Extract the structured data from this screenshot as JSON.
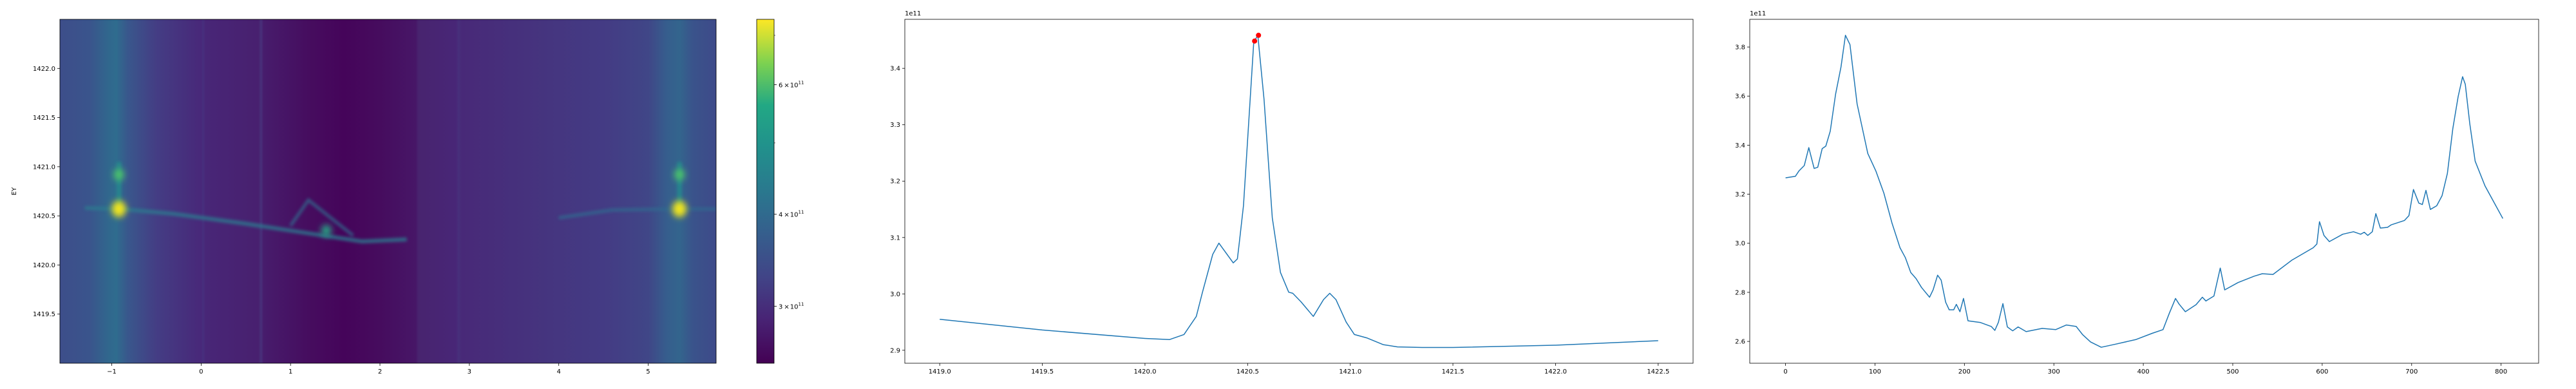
{
  "chart_data": [
    {
      "type": "heatmap",
      "title": "",
      "xlabel": "",
      "ylabel": "EY",
      "xlim": [
        -1.58,
        5.76
      ],
      "ylim": [
        1419.0,
        1422.5
      ],
      "xticks": [
        -1,
        0,
        1,
        2,
        3,
        4,
        5
      ],
      "xtick_labels": [
        "−1",
        "0",
        "1",
        "2",
        "3",
        "4",
        "5"
      ],
      "yticks": [
        1419.5,
        1420.0,
        1420.5,
        1421.0,
        1421.5,
        1422.0
      ],
      "ytick_labels": [
        "1419.5",
        "1420.0",
        "1420.5",
        "1421.0",
        "1421.5",
        "1422.0"
      ],
      "colormap": "viridis",
      "colorbar": {
        "scale": "log",
        "range": [
          251000000000.0,
          736000000000.0
        ],
        "ticks": [
          {
            "value": 300000000000.0,
            "mantissa": "3",
            "base": "10",
            "exp": "11"
          },
          {
            "value": 400000000000.0,
            "mantissa": "4",
            "base": "10",
            "exp": "11"
          },
          {
            "value": 600000000000.0,
            "mantissa": "6",
            "base": "10",
            "exp": "11"
          }
        ],
        "minor_ticks": [
          500000000000.0,
          700000000000.0
        ]
      },
      "features": [
        {
          "kind": "bright-spot",
          "x": -0.92,
          "y": 1420.57,
          "color": "#f2e51d"
        },
        {
          "kind": "bright-spot",
          "x": 5.35,
          "y": 1420.57,
          "color": "#f2e51d"
        },
        {
          "kind": "spot",
          "x": -0.92,
          "y": 1420.92,
          "color": "#4ec36b"
        },
        {
          "kind": "spot",
          "x": 5.35,
          "y": 1420.92,
          "color": "#4ec36b"
        },
        {
          "kind": "spot",
          "x": 1.4,
          "y": 1420.35,
          "color": "#25a584"
        }
      ]
    },
    {
      "type": "line",
      "title": "",
      "xlabel": "",
      "ylabel": "",
      "offset_label": "1e11",
      "xlim": [
        1418.83,
        1422.67
      ],
      "ylim": [
        2.877,
        3.487
      ],
      "xticks": [
        1419.0,
        1419.5,
        1420.0,
        1420.5,
        1421.0,
        1421.5,
        1422.0,
        1422.5
      ],
      "xtick_labels": [
        "1419.0",
        "1419.5",
        "1420.0",
        "1420.5",
        "1421.0",
        "1421.5",
        "1422.0",
        "1422.5"
      ],
      "yticks": [
        2.9,
        3.0,
        3.1,
        3.2,
        3.3,
        3.4
      ],
      "ytick_labels": [
        "2.9",
        "3.0",
        "3.1",
        "3.2",
        "3.3",
        "3.4"
      ],
      "color": "#1f77b4",
      "x": [
        1419.0,
        1419.5,
        1420.0,
        1420.12,
        1420.19,
        1420.25,
        1420.28,
        1420.33,
        1420.36,
        1420.43,
        1420.45,
        1420.46,
        1420.48,
        1420.53,
        1420.55,
        1420.58,
        1420.62,
        1420.66,
        1420.7,
        1420.72,
        1420.76,
        1420.82,
        1420.87,
        1420.9,
        1420.93,
        1420.98,
        1421.02,
        1421.08,
        1421.16,
        1421.23,
        1421.35,
        1421.5,
        1422.0,
        1422.5
      ],
      "y": [
        2.955,
        2.936,
        2.921,
        2.919,
        2.928,
        2.96,
        3.003,
        3.07,
        3.09,
        3.055,
        3.062,
        3.093,
        3.157,
        3.448,
        3.458,
        3.345,
        3.135,
        3.038,
        3.003,
        3.001,
        2.986,
        2.96,
        2.99,
        3.001,
        2.99,
        2.95,
        2.928,
        2.922,
        2.91,
        2.906,
        2.905,
        2.905,
        2.909,
        2.917
      ],
      "markers": {
        "color": "#ff0000",
        "x": [
          1420.534,
          1420.553
        ],
        "y": [
          3.4485,
          3.4587
        ]
      }
    },
    {
      "type": "line",
      "title": "",
      "xlabel": "",
      "ylabel": "",
      "offset_label": "1e11",
      "xlim": [
        -40,
        842
      ],
      "ylim": [
        2.511,
        3.913
      ],
      "xticks": [
        0,
        100,
        200,
        300,
        400,
        500,
        600,
        700,
        800
      ],
      "xtick_labels": [
        "0",
        "100",
        "200",
        "300",
        "400",
        "500",
        "600",
        "700",
        "800"
      ],
      "yticks": [
        2.6,
        2.8,
        3.0,
        3.2,
        3.4,
        3.6,
        3.8
      ],
      "ytick_labels": [
        "2.6",
        "2.8",
        "3.0",
        "3.2",
        "3.4",
        "3.6",
        "3.8"
      ],
      "color": "#1f77b4",
      "x": [
        0,
        11,
        15,
        21,
        26,
        32,
        36,
        41,
        45,
        50,
        56,
        62,
        67,
        72,
        80,
        86,
        92,
        101,
        110,
        119,
        128,
        134,
        140,
        146,
        152,
        161,
        165,
        170,
        174,
        179,
        183,
        188,
        191,
        195,
        199,
        204,
        218,
        230,
        234,
        238,
        243,
        248,
        254,
        260,
        269,
        287,
        302,
        314,
        325,
        332,
        341,
        353,
        368,
        392,
        410,
        422,
        429,
        436,
        440,
        447,
        459,
        466,
        470,
        479,
        486,
        491,
        506,
        524,
        533,
        545,
        566,
        590,
        594,
        597,
        602,
        608,
        623,
        635,
        643,
        647,
        651,
        656,
        660,
        665,
        673,
        677,
        692,
        697,
        702,
        708,
        712,
        716,
        721,
        728,
        734,
        740,
        746,
        752,
        757,
        760,
        765,
        771,
        782,
        791,
        802
      ],
      "y": [
        3.267,
        3.273,
        3.295,
        3.317,
        3.39,
        3.305,
        3.31,
        3.386,
        3.396,
        3.457,
        3.608,
        3.719,
        3.848,
        3.81,
        3.568,
        3.467,
        3.366,
        3.295,
        3.204,
        3.083,
        2.982,
        2.941,
        2.881,
        2.856,
        2.82,
        2.78,
        2.81,
        2.87,
        2.85,
        2.76,
        2.729,
        2.729,
        2.751,
        2.721,
        2.775,
        2.684,
        2.677,
        2.661,
        2.645,
        2.678,
        2.754,
        2.659,
        2.643,
        2.659,
        2.64,
        2.653,
        2.648,
        2.667,
        2.661,
        2.628,
        2.598,
        2.576,
        2.588,
        2.608,
        2.633,
        2.648,
        2.714,
        2.775,
        2.752,
        2.721,
        2.75,
        2.78,
        2.765,
        2.785,
        2.899,
        2.81,
        2.84,
        2.866,
        2.876,
        2.873,
        2.931,
        2.982,
        2.997,
        3.088,
        3.032,
        3.007,
        3.037,
        3.047,
        3.037,
        3.045,
        3.032,
        3.047,
        3.121,
        3.062,
        3.065,
        3.075,
        3.093,
        3.113,
        3.219,
        3.164,
        3.158,
        3.216,
        3.138,
        3.153,
        3.194,
        3.285,
        3.467,
        3.598,
        3.679,
        3.648,
        3.487,
        3.335,
        3.234,
        3.174,
        3.101
      ]
    }
  ]
}
